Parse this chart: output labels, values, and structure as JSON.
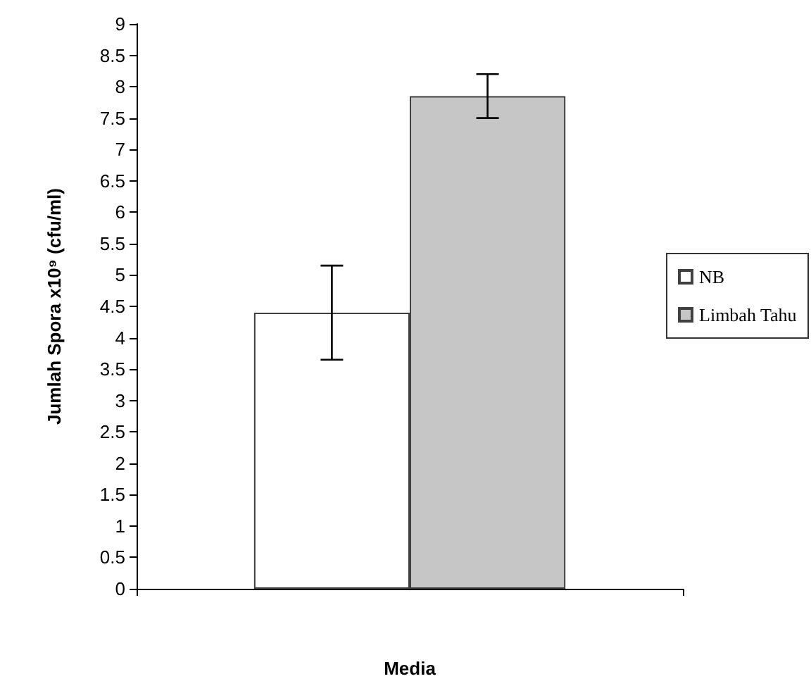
{
  "chart_data": {
    "type": "bar",
    "xlabel": "Media",
    "ylabel": "Jumlah Spora x10⁹ (cfu/ml)",
    "categories": [
      null
    ],
    "series": [
      {
        "name": "NB",
        "color": "#ffffff",
        "values": [
          4.4
        ],
        "errors": [
          0.75
        ]
      },
      {
        "name": "Limbah Tahu",
        "color": "#c6c6c6",
        "values": [
          7.85
        ],
        "errors": [
          0.35
        ]
      }
    ],
    "ylim": [
      0,
      9
    ],
    "yticks": [
      0,
      0.5,
      1,
      1.5,
      2,
      2.5,
      3,
      3.5,
      4,
      4.5,
      5,
      5.5,
      6,
      6.5,
      7,
      7.5,
      8,
      8.5,
      9
    ],
    "grid": false,
    "legend": "right"
  }
}
